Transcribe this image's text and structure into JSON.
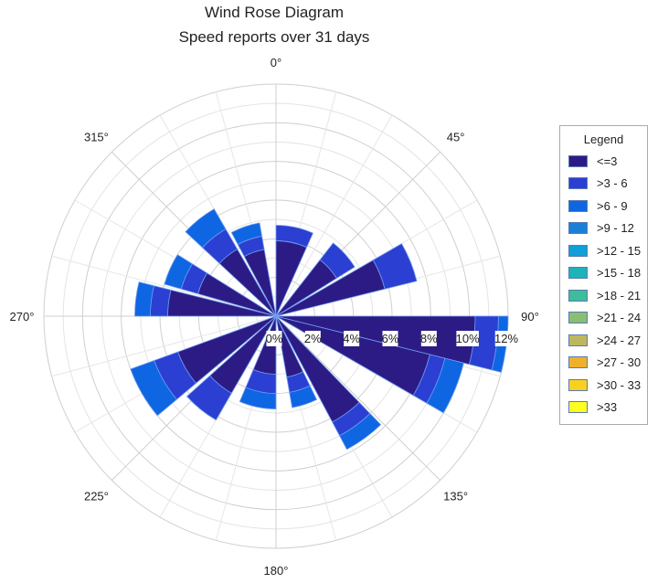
{
  "chart_data": {
    "type": "wind-rose",
    "title": "Wind Rose Diagram",
    "subtitle": "Speed reports over 31 days",
    "radial_axis": {
      "range": [
        0,
        12
      ],
      "unit": "%",
      "tick_labels": [
        "0%",
        "2%",
        "4%",
        "6%",
        "8%",
        "10%",
        "12%"
      ],
      "ticks": [
        0,
        2,
        4,
        6,
        8,
        10,
        12
      ]
    },
    "angular_axis": {
      "tick_labels": [
        "0°",
        "45°",
        "90°",
        "135°",
        "180°",
        "225°",
        "270°",
        "315°"
      ],
      "ticks": [
        0,
        45,
        90,
        135,
        180,
        225,
        270,
        315
      ]
    },
    "grid": true,
    "legend": {
      "title": "Legend",
      "placement": "right",
      "entries": [
        {
          "label": "<=3",
          "color": "#2d1b85"
        },
        {
          "label": ">3 - 6",
          "color": "#2b3fd2"
        },
        {
          "label": ">6 - 9",
          "color": "#0f66e2"
        },
        {
          "label": ">9 - 12",
          "color": "#1a80d6"
        },
        {
          "label": ">12 - 15",
          "color": "#119fd8"
        },
        {
          "label": ">15 - 18",
          "color": "#1db3b8"
        },
        {
          "label": ">18 - 21",
          "color": "#3dbd9a"
        },
        {
          "label": ">21 - 24",
          "color": "#88bf72"
        },
        {
          "label": ">24 - 27",
          "color": "#bdb860"
        },
        {
          "label": ">27 - 30",
          "color": "#efb12c"
        },
        {
          "label": ">30 - 33",
          "color": "#f7d11e"
        },
        {
          "label": ">33",
          "color": "#ffff22"
        }
      ]
    },
    "sectors": [
      {
        "from_deg": 0,
        "to_deg": 24,
        "values": [
          3.9,
          0.8
        ]
      },
      {
        "from_deg": 38,
        "to_deg": 58,
        "values": [
          3.7,
          1.1
        ]
      },
      {
        "from_deg": 60,
        "to_deg": 76,
        "values": [
          5.8,
          1.7
        ]
      },
      {
        "from_deg": 90,
        "to_deg": 104,
        "values": [
          10.3,
          1.2,
          0.5
        ]
      },
      {
        "from_deg": 104,
        "to_deg": 120,
        "values": [
          8.2,
          0.8,
          1.0
        ]
      },
      {
        "from_deg": 136,
        "to_deg": 152,
        "values": [
          6.2,
          0.8,
          0.8
        ]
      },
      {
        "from_deg": 154,
        "to_deg": 170,
        "values": [
          3.2,
          0.8,
          0.8
        ]
      },
      {
        "from_deg": 180,
        "to_deg": 203,
        "values": [
          3.0,
          1.0,
          0.8
        ]
      },
      {
        "from_deg": 210,
        "to_deg": 228,
        "values": [
          4.6,
          1.6
        ]
      },
      {
        "from_deg": 230,
        "to_deg": 250,
        "values": [
          5.4,
          1.3,
          1.3
        ]
      },
      {
        "from_deg": 270,
        "to_deg": 284,
        "values": [
          5.6,
          0.9,
          0.8
        ]
      },
      {
        "from_deg": 286,
        "to_deg": 302,
        "values": [
          4.2,
          0.9,
          0.9
        ]
      },
      {
        "from_deg": 313,
        "to_deg": 330,
        "values": [
          4.0,
          1.2,
          1.2
        ]
      },
      {
        "from_deg": 332,
        "to_deg": 350,
        "values": [
          3.5,
          0.7,
          0.7
        ]
      }
    ]
  }
}
